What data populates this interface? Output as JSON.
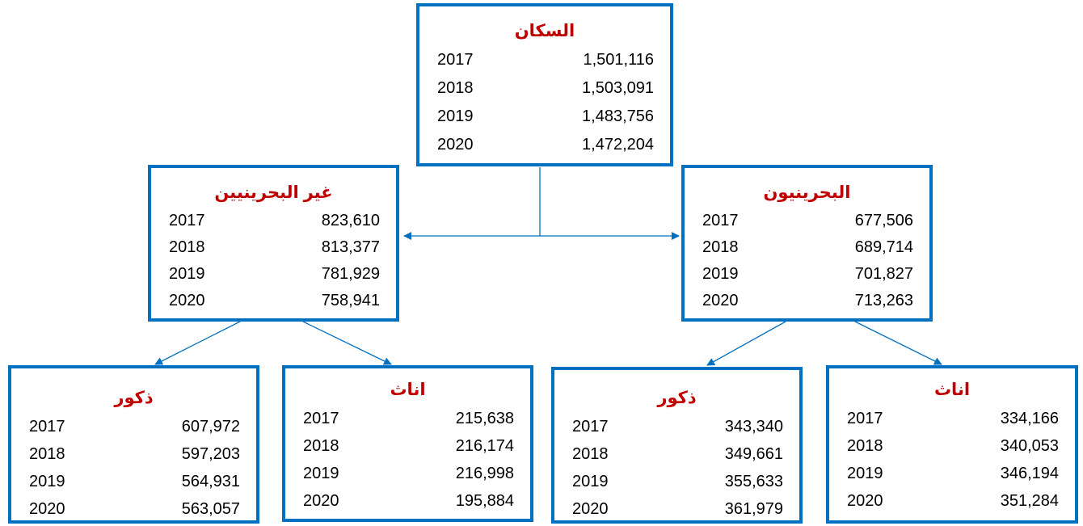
{
  "nodes": [
    {
      "label": "السكان",
      "rows": [
        [
          "2017",
          "1,501,116"
        ],
        [
          "2018",
          "1,503,091"
        ],
        [
          "2019",
          "1,483,756"
        ],
        [
          "2020",
          "1,472,204"
        ]
      ]
    },
    {
      "label": "غير البحرينيين",
      "rows": [
        [
          "2017",
          "823,610"
        ],
        [
          "2018",
          "813,377"
        ],
        [
          "2019",
          "781,929"
        ],
        [
          "2020",
          "758,941"
        ]
      ]
    },
    {
      "label": "البحرينيون",
      "rows": [
        [
          "2017",
          "677,506"
        ],
        [
          "2018",
          "689,714"
        ],
        [
          "2019",
          "701,827"
        ],
        [
          "2020",
          "713,263"
        ]
      ]
    },
    {
      "label": "ذكور",
      "rows": [
        [
          "2017",
          "607,972"
        ],
        [
          "2018",
          "597,203"
        ],
        [
          "2019",
          "564,931"
        ],
        [
          "2020",
          "563,057"
        ]
      ]
    },
    {
      "label": "اناث",
      "rows": [
        [
          "2017",
          "215,638"
        ],
        [
          "2018",
          "216,174"
        ],
        [
          "2019",
          "216,998"
        ],
        [
          "2020",
          "195,884"
        ]
      ]
    },
    {
      "label": "ذكور",
      "rows": [
        [
          "2017",
          "343,340"
        ],
        [
          "2018",
          "349,661"
        ],
        [
          "2019",
          "355,633"
        ],
        [
          "2020",
          "361,979"
        ]
      ]
    },
    {
      "label": "اناث",
      "rows": [
        [
          "2017",
          "334,166"
        ],
        [
          "2018",
          "340,053"
        ],
        [
          "2019",
          "346,194"
        ],
        [
          "2020",
          "351,284"
        ]
      ]
    }
  ]
}
